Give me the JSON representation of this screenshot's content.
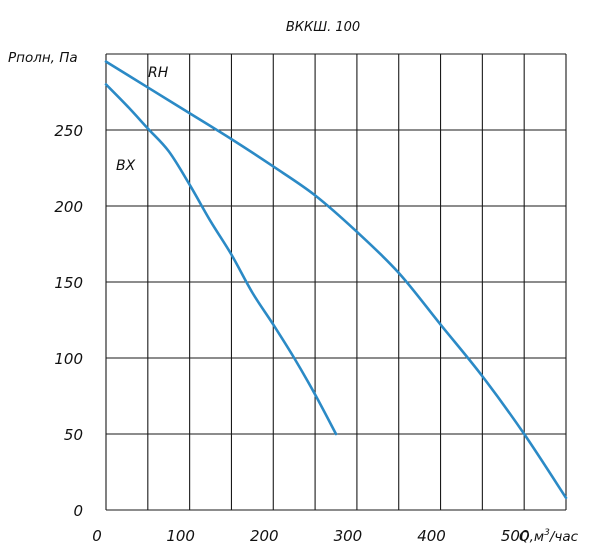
{
  "chart_data": {
    "type": "line",
    "title": "ВККШ. 100",
    "xlabel": "Q,м",
    "xlabel_sup": "3",
    "xlabel_suffix": "/час",
    "ylabel": "Рполн, Па",
    "xlim": [
      0,
      550
    ],
    "ylim": [
      0,
      300
    ],
    "xticks": [
      "0",
      "100",
      "200",
      "300",
      "400",
      "500"
    ],
    "yticks": [
      "0",
      "50",
      "100",
      "150",
      "200",
      "250"
    ],
    "grid": true,
    "line_color": "#2b8ac6",
    "series": [
      {
        "name": "RH",
        "x": [
          0,
          50,
          100,
          150,
          200,
          250,
          300,
          350,
          400,
          450,
          500,
          550
        ],
        "y": [
          295,
          278,
          261,
          244,
          226,
          207,
          183,
          156,
          122,
          88,
          50,
          8
        ]
      },
      {
        "name": "ВХ",
        "x": [
          0,
          25,
          50,
          75,
          100,
          125,
          150,
          175,
          200,
          225,
          250,
          275
        ],
        "y": [
          280,
          266,
          251,
          236,
          214,
          190,
          168,
          143,
          122,
          100,
          76,
          50
        ]
      }
    ]
  }
}
